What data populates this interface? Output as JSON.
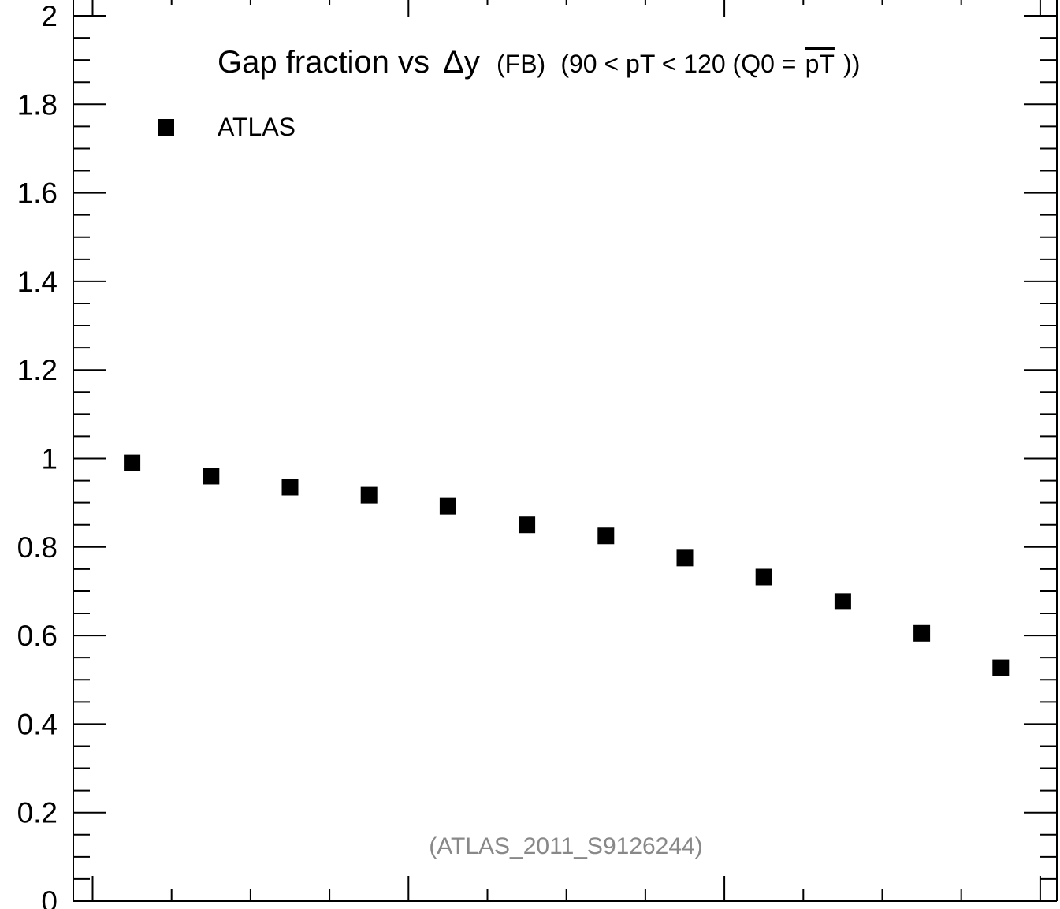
{
  "chart_data": {
    "type": "scatter",
    "title": {
      "main": "Gap fraction vs",
      "delta": "Δy",
      "tag": "(FB)",
      "range_prefix": "(90 < pT < 120 (Q0 =",
      "overline": "pT",
      "range_suffix": "))"
    },
    "xlabel": "",
    "ylabel": "",
    "ylim": [
      0,
      2
    ],
    "y_ticks": [
      0,
      0.2,
      0.4,
      0.6,
      0.8,
      1,
      1.2,
      1.4,
      1.6,
      1.8,
      2
    ],
    "y_tick_labels": [
      "0",
      "0.2",
      "0.4",
      "0.6",
      "0.8",
      "1",
      "1.2",
      "1.4",
      "1.6",
      "1.8",
      "2"
    ],
    "x_bins": 12,
    "x_tick_labels": [],
    "series": [
      {
        "name": "ATLAS",
        "color": "#000000",
        "marker": "square",
        "values": [
          0.99,
          0.96,
          0.935,
          0.917,
          0.892,
          0.85,
          0.825,
          0.775,
          0.732,
          0.677,
          0.605,
          0.527
        ]
      }
    ],
    "legend": {
      "position": "top-left",
      "entries": [
        "ATLAS"
      ]
    },
    "grid": false,
    "watermark": "(ATLAS_2011_S9126244)"
  }
}
